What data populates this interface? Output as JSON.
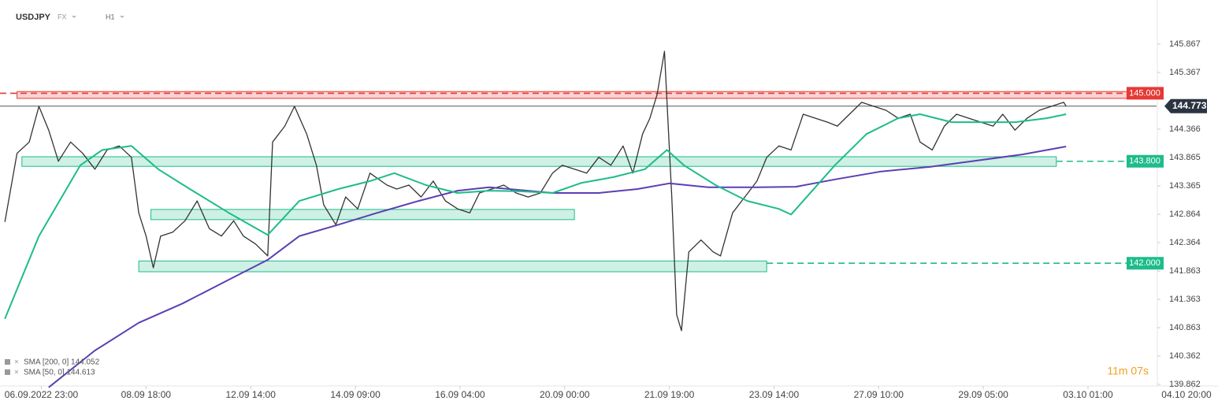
{
  "chart_data": {
    "type": "line",
    "symbol": "USDJPY",
    "market": "FX",
    "interval": "H1",
    "timer": "11m 07s",
    "xlim": [
      -17,
      475
    ],
    "ylim": [
      139.8,
      146.5
    ],
    "yticks": [
      139.862,
      140.362,
      140.863,
      141.363,
      141.863,
      142.364,
      142.864,
      143.365,
      143.865,
      144.366,
      145.367,
      145.867
    ],
    "xticks": [
      {
        "value": 0,
        "label": "06.09.2022 23:00"
      },
      {
        "value": 43,
        "label": "08.09 18:00"
      },
      {
        "value": 86,
        "label": "12.09 14:00"
      },
      {
        "value": 129,
        "label": "14.09 09:00"
      },
      {
        "value": 172,
        "label": "16.09 04:00"
      },
      {
        "value": 215,
        "label": "20.09 00:00"
      },
      {
        "value": 258,
        "label": "21.09 19:00"
      },
      {
        "value": 301,
        "label": "23.09 14:00"
      },
      {
        "value": 344,
        "label": "27.09 10:00"
      },
      {
        "value": 387,
        "label": "29.09 05:00"
      },
      {
        "value": 430,
        "label": "03.10 01:00"
      },
      {
        "value": 473,
        "label": "04.10 20:00"
      }
    ],
    "series": [
      {
        "color": "#333333",
        "x": [
          -15,
          -10,
          -5,
          -1,
          3,
          7,
          12,
          17,
          22,
          27,
          32,
          37,
          40,
          43,
          46,
          49,
          54,
          59,
          64,
          69,
          74,
          79,
          83,
          88,
          93,
          95,
          100,
          104,
          109,
          113,
          116,
          121,
          125,
          130,
          135,
          142,
          146,
          151,
          156,
          161,
          166,
          171,
          176,
          180,
          185,
          190,
          195,
          200,
          205,
          210,
          214,
          219,
          224,
          229,
          234,
          239,
          243,
          247,
          250,
          253,
          256,
          259,
          261,
          263,
          266,
          271,
          276,
          279,
          284,
          289,
          294,
          298,
          303,
          308,
          313,
          318,
          323,
          327,
          332,
          337,
          342,
          347,
          352,
          357,
          361,
          366,
          371,
          376,
          381,
          386,
          391,
          395,
          400,
          405,
          410,
          415,
          420,
          421
        ],
        "values": [
          142.73,
          143.94,
          144.14,
          144.77,
          144.35,
          143.8,
          144.14,
          143.94,
          143.66,
          144.0,
          144.07,
          143.87,
          142.89,
          142.48,
          141.92,
          142.48,
          142.55,
          142.75,
          143.1,
          142.61,
          142.48,
          142.75,
          142.48,
          142.34,
          142.13,
          144.14,
          144.42,
          144.77,
          144.28,
          143.73,
          143.03,
          142.68,
          143.17,
          142.96,
          143.59,
          143.38,
          143.31,
          143.38,
          143.17,
          143.45,
          143.1,
          142.96,
          142.89,
          143.24,
          143.31,
          143.38,
          143.24,
          143.17,
          143.24,
          143.59,
          143.73,
          143.66,
          143.59,
          143.87,
          143.73,
          144.07,
          143.59,
          144.28,
          144.56,
          144.98,
          145.74,
          143.17,
          141.09,
          140.81,
          142.2,
          142.41,
          142.2,
          142.13,
          142.89,
          143.17,
          143.45,
          143.87,
          144.07,
          144.0,
          144.63,
          144.56,
          144.49,
          144.42,
          144.63,
          144.84,
          144.77,
          144.7,
          144.56,
          144.63,
          144.14,
          144.0,
          144.42,
          144.63,
          144.56,
          144.49,
          144.42,
          144.63,
          144.35,
          144.56,
          144.7,
          144.77,
          144.84,
          144.773
        ]
      },
      {
        "name": "SMA [200, 0] 144.052",
        "color": "#5b3fb3",
        "x": [
          3,
          22,
          40,
          58,
          77,
          93,
          106,
          122,
          138,
          155,
          171,
          184,
          210,
          229,
          245,
          258,
          274,
          294,
          310,
          326,
          345,
          365,
          384,
          403,
          421
        ],
        "values": [
          139.81,
          140.46,
          140.95,
          141.29,
          141.71,
          142.06,
          142.48,
          142.68,
          142.89,
          143.1,
          143.28,
          143.34,
          143.24,
          143.24,
          143.31,
          143.41,
          143.34,
          143.34,
          143.35,
          143.48,
          143.62,
          143.7,
          143.81,
          143.92,
          144.06
        ]
      },
      {
        "name": "SMA [50, 0] 144.613",
        "color": "#1ebc8a",
        "x": [
          -15,
          -1,
          16,
          25,
          37,
          48,
          61,
          77,
          93,
          106,
          122,
          135,
          145,
          158,
          171,
          184,
          197,
          210,
          222,
          235,
          248,
          257,
          264,
          277,
          290,
          303,
          308,
          313,
          326,
          339,
          352,
          361,
          374,
          387,
          400,
          413,
          421
        ],
        "values": [
          141.02,
          142.48,
          143.73,
          144.0,
          144.07,
          143.66,
          143.31,
          142.89,
          142.5,
          143.1,
          143.31,
          143.45,
          143.59,
          143.38,
          143.24,
          143.28,
          143.27,
          143.24,
          143.42,
          143.52,
          143.66,
          144.0,
          143.73,
          143.38,
          143.1,
          142.96,
          142.86,
          143.1,
          143.73,
          144.28,
          144.56,
          144.63,
          144.49,
          144.49,
          144.49,
          144.56,
          144.63
        ]
      }
    ],
    "zones": [
      {
        "x": [
          -10,
          446
        ],
        "y": [
          144.91,
          145.03
        ],
        "color": "#e53935"
      },
      {
        "x": [
          -8,
          417
        ],
        "y": [
          143.71,
          143.88
        ],
        "color": "#1ebc8a"
      },
      {
        "x": [
          45,
          219
        ],
        "y": [
          142.77,
          142.95
        ],
        "color": "#1ebc8a"
      },
      {
        "x": [
          40,
          298
        ],
        "y": [
          141.85,
          142.04
        ],
        "color": "#1ebc8a"
      }
    ],
    "levels": [
      {
        "value": 145,
        "label": "145.000",
        "color": "#e53935",
        "from": -17
      },
      {
        "value": 143.8,
        "label": "143.800",
        "color": "#1ebc8a",
        "from": 417
      },
      {
        "value": 142,
        "label": "142.000",
        "color": "#1ebc8a",
        "from": 298
      }
    ],
    "current": {
      "value": 144.773,
      "label": "144.773",
      "color": "#2b3440"
    }
  }
}
